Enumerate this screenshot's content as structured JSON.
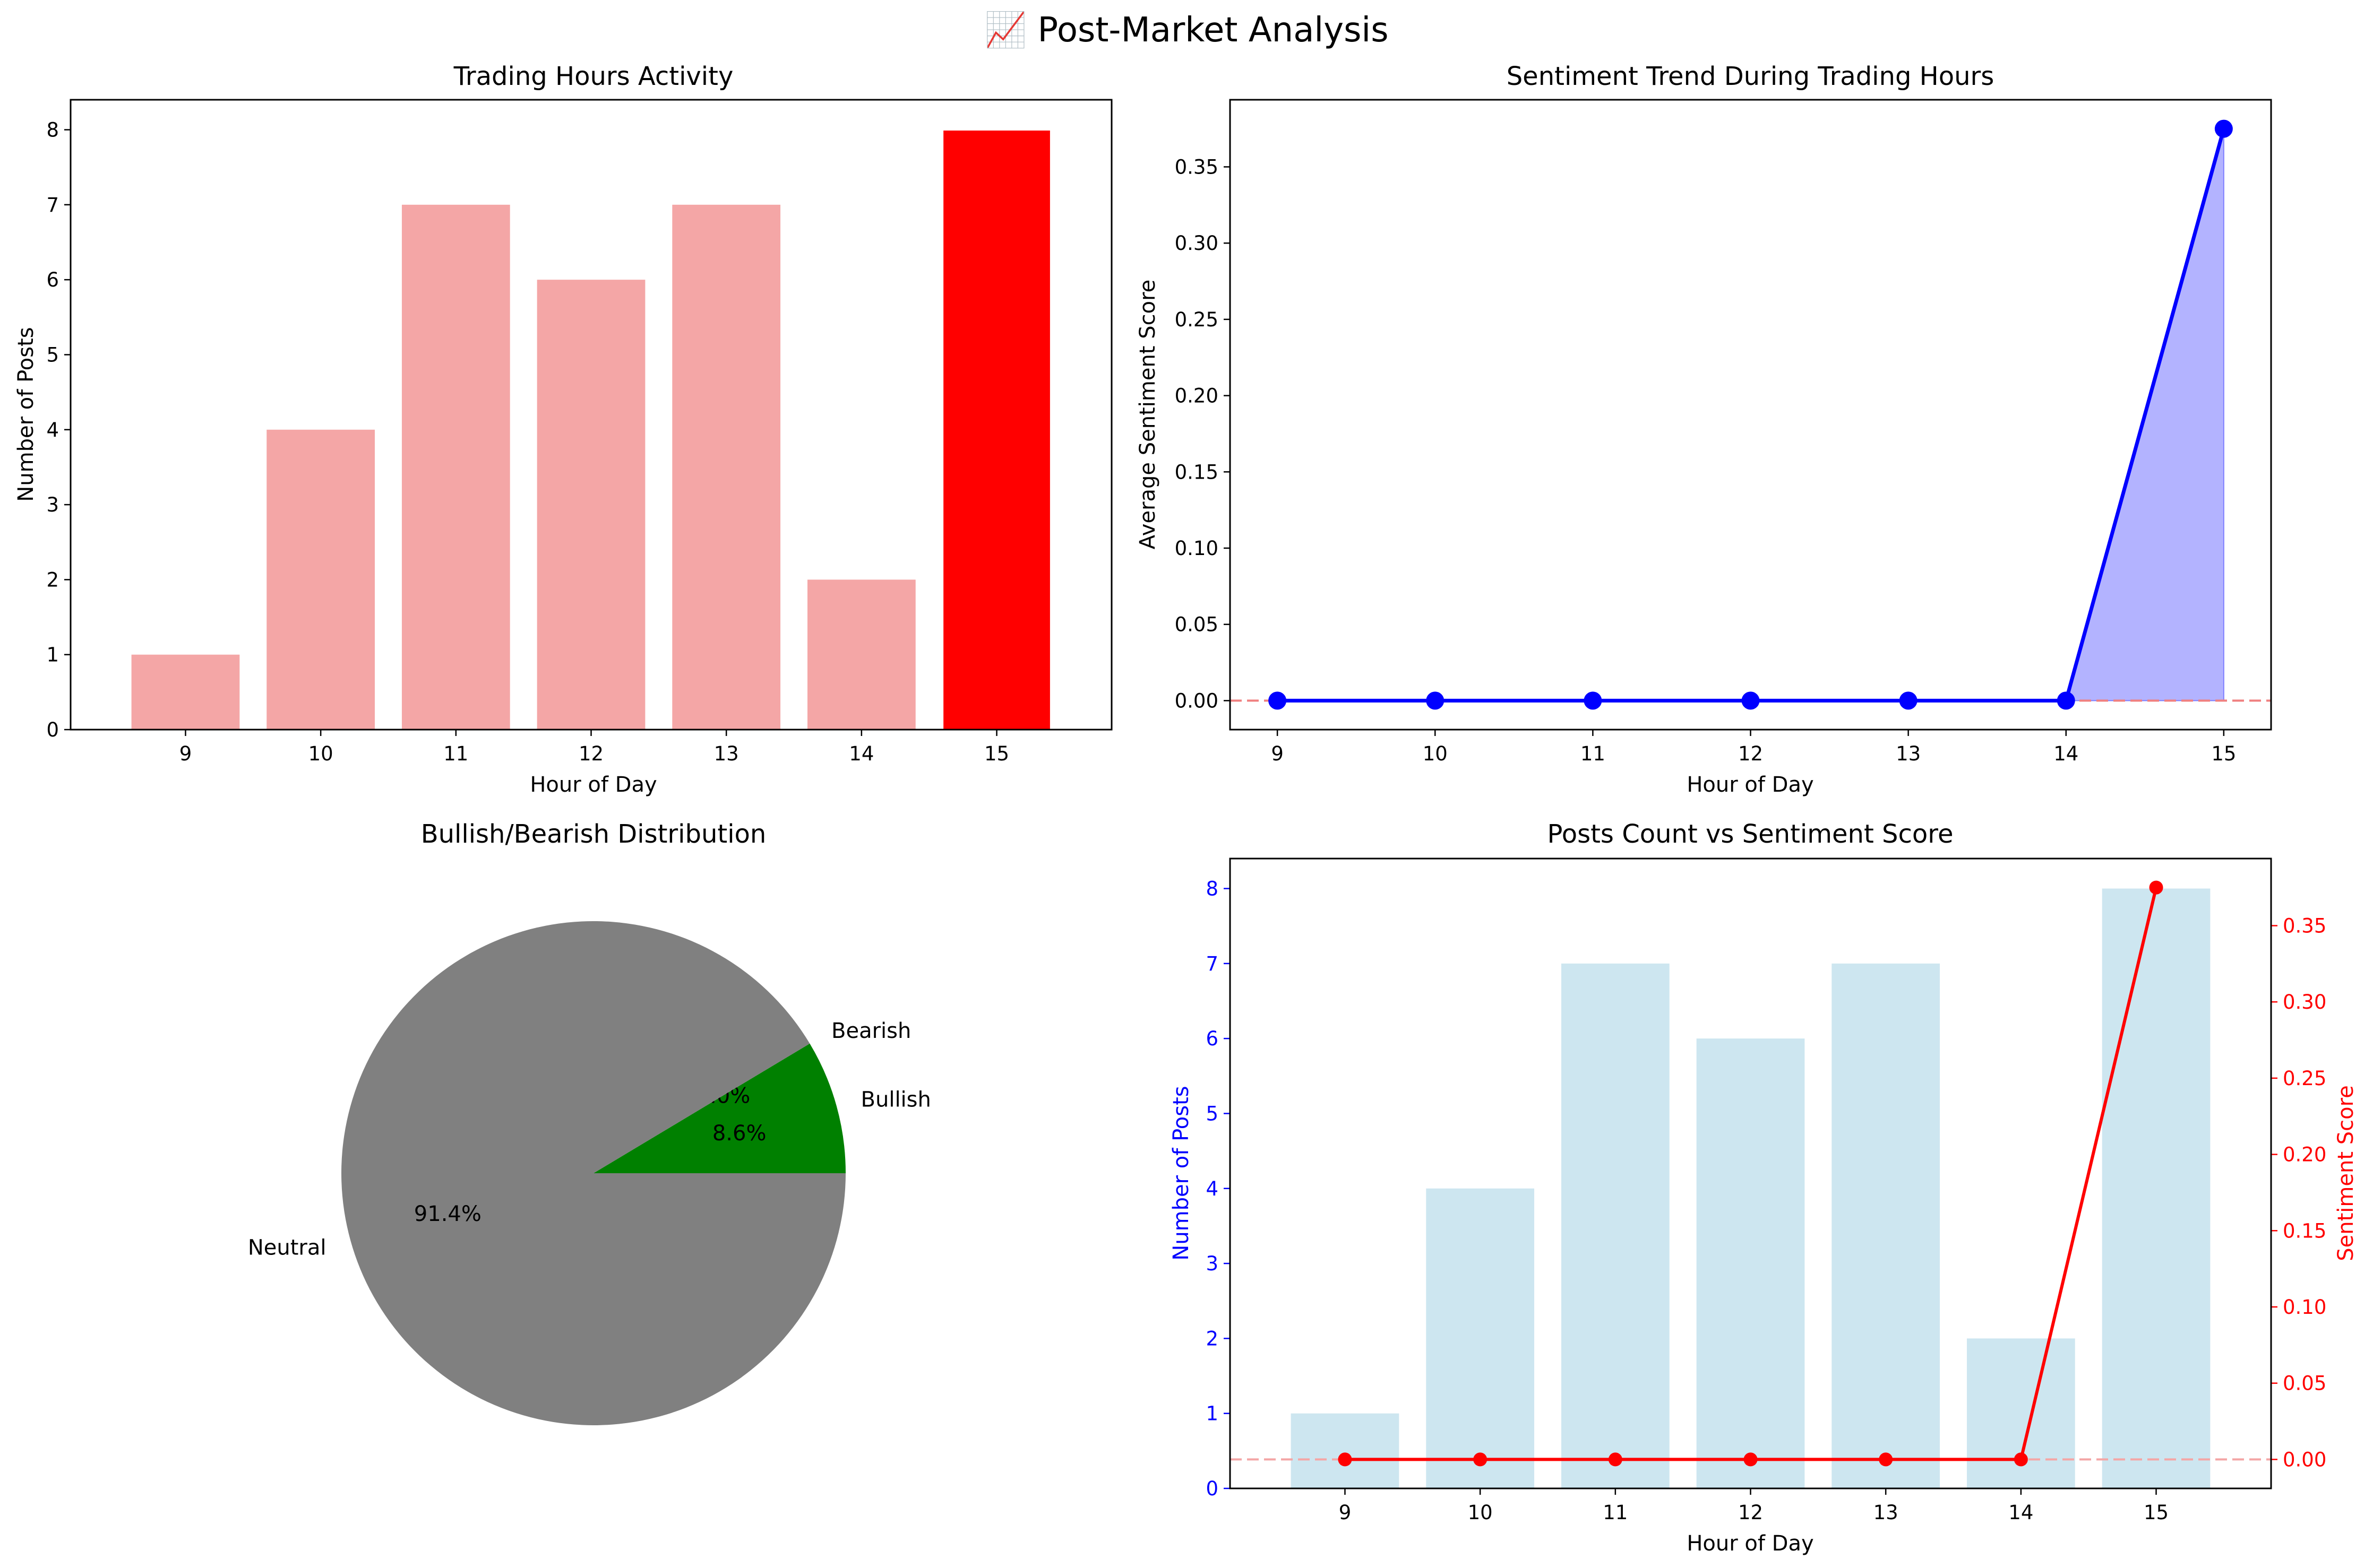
{
  "suptitle": "📈 Post-Market Analysis",
  "chart_data": [
    {
      "type": "bar",
      "title": "Trading Hours Activity",
      "xlabel": "Hour of Day",
      "ylabel": "Number of Posts",
      "categories": [
        "9",
        "10",
        "11",
        "12",
        "13",
        "14",
        "15"
      ],
      "values": [
        1,
        4,
        7,
        6,
        7,
        2,
        8
      ],
      "ylim": [
        0,
        8.4
      ],
      "yticks": [
        "0",
        "1",
        "2",
        "3",
        "4",
        "5",
        "6",
        "7",
        "8"
      ],
      "bar_color": "#f4a6a6",
      "highlight_color": "#ff0000",
      "highlight_index": 6,
      "grid": false
    },
    {
      "type": "line",
      "title": "Sentiment Trend During Trading Hours",
      "xlabel": "Hour of Day",
      "ylabel": "Average Sentiment Score",
      "x": [
        9,
        10,
        11,
        12,
        13,
        14,
        15
      ],
      "xticks": [
        "9",
        "10",
        "11",
        "12",
        "13",
        "14",
        "15"
      ],
      "values": [
        0,
        0,
        0,
        0,
        0,
        0,
        0.375
      ],
      "xlim": [
        8.7,
        15.3
      ],
      "ylim": [
        -0.019,
        0.394
      ],
      "yticks": [
        "0.00",
        "0.05",
        "0.10",
        "0.15",
        "0.20",
        "0.25",
        "0.30",
        "0.35"
      ],
      "line_color": "#0000ff",
      "fill_color": "#b3b3ff",
      "reference_line": 0,
      "reference_color": "#f08080",
      "grid": false
    },
    {
      "type": "pie",
      "title": "Bullish/Bearish Distribution",
      "labels": [
        "Bullish",
        "Bearish",
        "Neutral"
      ],
      "values": [
        8.6,
        0.0,
        91.4
      ],
      "pct_labels": [
        "8.6%",
        "0.0%",
        "91.4%"
      ],
      "colors": [
        "#008000",
        "#ff0000",
        "#808080"
      ]
    },
    {
      "type": "bar",
      "title": "Posts Count vs Sentiment Score",
      "xlabel": "Hour of Day",
      "ylabel": "Number of Posts",
      "ylabel_color": "#0000ff",
      "categories": [
        "9",
        "10",
        "11",
        "12",
        "13",
        "14",
        "15"
      ],
      "values": [
        1,
        4,
        7,
        6,
        7,
        2,
        8
      ],
      "ylim": [
        0,
        8.4
      ],
      "yticks": [
        "0",
        "1",
        "2",
        "3",
        "4",
        "5",
        "6",
        "7",
        "8"
      ],
      "bar_color": "#cde6f0",
      "secondary": {
        "type": "line",
        "ylabel": "Sentiment Score",
        "color": "#ff0000",
        "values": [
          0,
          0,
          0,
          0,
          0,
          0,
          0.375
        ],
        "ylim": [
          -0.019,
          0.394
        ],
        "yticks": [
          "0.00",
          "0.05",
          "0.10",
          "0.15",
          "0.20",
          "0.25",
          "0.30",
          "0.35"
        ],
        "reference_line": 0,
        "reference_color": "#f4a6a6"
      },
      "grid": false
    }
  ]
}
